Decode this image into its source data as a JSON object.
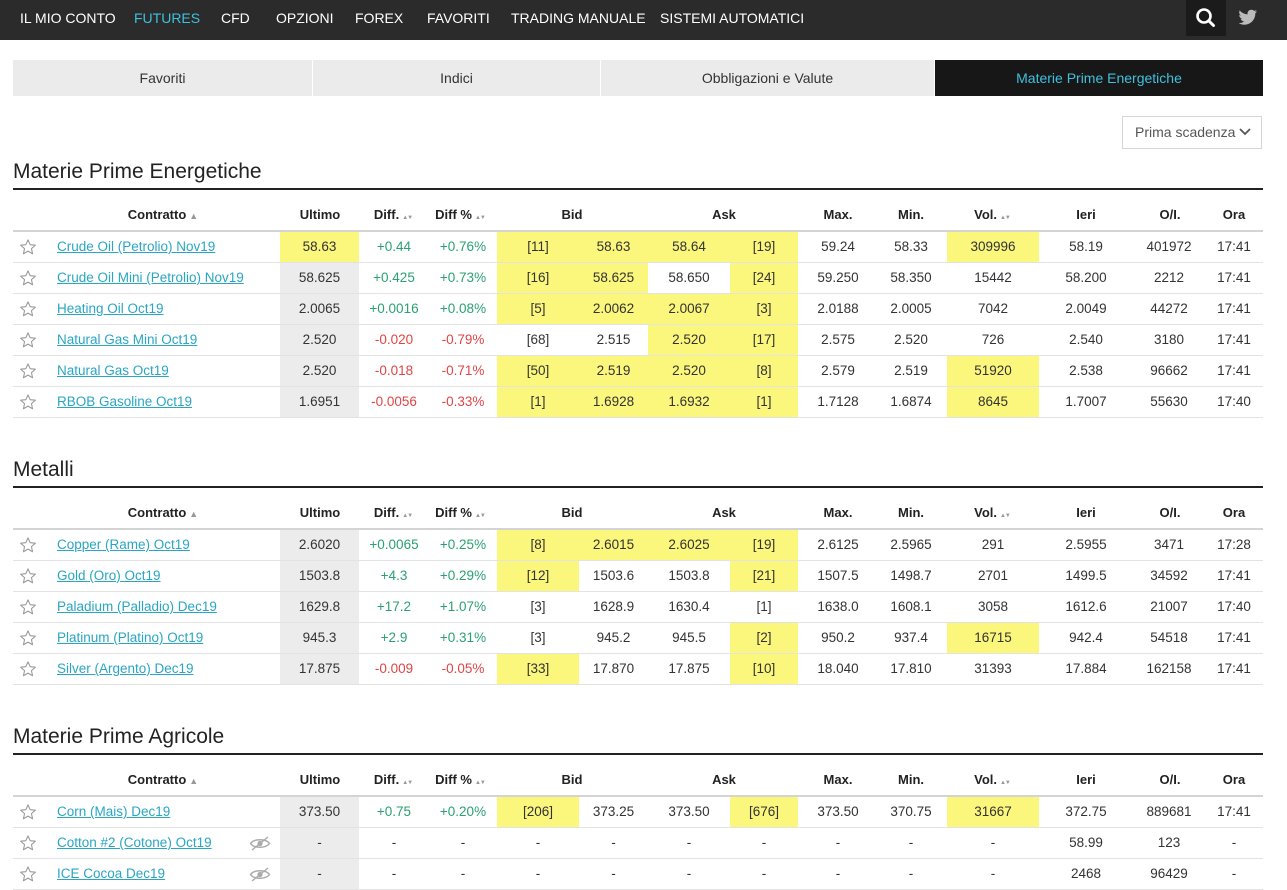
{
  "nav": {
    "items": [
      {
        "label": "IL MIO CONTO",
        "active": false
      },
      {
        "label": "FUTURES",
        "active": true
      },
      {
        "label": "CFD",
        "active": false
      },
      {
        "label": "OPZIONI",
        "active": false
      },
      {
        "label": "FOREX",
        "active": false
      },
      {
        "label": "FAVORITI",
        "active": false
      },
      {
        "label": "TRADING MANUALE",
        "active": false
      },
      {
        "label": "SISTEMI AUTOMATICI",
        "active": false
      }
    ],
    "search_icon": "search-icon",
    "twitter_icon": "twitter-icon"
  },
  "tabs": [
    {
      "label": "Favoriti",
      "active": false
    },
    {
      "label": "Indici",
      "active": false
    },
    {
      "label": "Obbligazioni e Valute",
      "active": false
    },
    {
      "label": "Materie Prime Energetiche",
      "active": true
    }
  ],
  "dropdown": {
    "selected": "Prima scadenza"
  },
  "columns": {
    "contratto": "Contratto",
    "ultimo": "Ultimo",
    "diff": "Diff.",
    "diffpct": "Diff %",
    "bid": "Bid",
    "ask": "Ask",
    "max": "Max.",
    "min": "Min.",
    "vol": "Vol.",
    "ieri": "Ieri",
    "oi": "O/I.",
    "ora": "Ora"
  },
  "colors": {
    "accent": "#3fc0dd",
    "positive": "#2aa171",
    "negative": "#e04545",
    "highlight": "#fbf67c",
    "nav_bg": "#2b2b2b"
  },
  "sections": [
    {
      "title": "Materie Prime Energetiche",
      "rows": [
        {
          "name": "Crude Oil (Petrolio) Nov19",
          "ultimo": "58.63",
          "diff": "+0.44",
          "diffpct": "+0.76%",
          "bidsize": "[11]",
          "bid": "58.63",
          "ask": "58.64",
          "asksize": "[19]",
          "max": "59.24",
          "min": "58.33",
          "vol": "309996",
          "ieri": "58.19",
          "oi": "401972",
          "ora": "17:41",
          "dir": "pos",
          "hl": [
            "ultimo",
            "bidsize",
            "bid",
            "ask",
            "asksize",
            "vol"
          ],
          "hidden": false
        },
        {
          "name": "Crude Oil Mini (Petrolio) Nov19",
          "ultimo": "58.625",
          "diff": "+0.425",
          "diffpct": "+0.73%",
          "bidsize": "[16]",
          "bid": "58.625",
          "ask": "58.650",
          "asksize": "[24]",
          "max": "59.250",
          "min": "58.350",
          "vol": "15442",
          "ieri": "58.200",
          "oi": "2212",
          "ora": "17:41",
          "dir": "pos",
          "hl": [
            "bidsize",
            "bid",
            "asksize"
          ],
          "hidden": false
        },
        {
          "name": "Heating Oil Oct19",
          "ultimo": "2.0065",
          "diff": "+0.0016",
          "diffpct": "+0.08%",
          "bidsize": "[5]",
          "bid": "2.0062",
          "ask": "2.0067",
          "asksize": "[3]",
          "max": "2.0188",
          "min": "2.0005",
          "vol": "7042",
          "ieri": "2.0049",
          "oi": "44272",
          "ora": "17:41",
          "dir": "pos",
          "hl": [
            "bidsize",
            "bid",
            "ask",
            "asksize"
          ],
          "hidden": false
        },
        {
          "name": "Natural Gas Mini Oct19",
          "ultimo": "2.520",
          "diff": "-0.020",
          "diffpct": "-0.79%",
          "bidsize": "[68]",
          "bid": "2.515",
          "ask": "2.520",
          "asksize": "[17]",
          "max": "2.575",
          "min": "2.520",
          "vol": "726",
          "ieri": "2.540",
          "oi": "3180",
          "ora": "17:41",
          "dir": "neg",
          "hl": [
            "ask",
            "asksize"
          ],
          "hidden": false
        },
        {
          "name": "Natural Gas Oct19",
          "ultimo": "2.520",
          "diff": "-0.018",
          "diffpct": "-0.71%",
          "bidsize": "[50]",
          "bid": "2.519",
          "ask": "2.520",
          "asksize": "[8]",
          "max": "2.579",
          "min": "2.519",
          "vol": "51920",
          "ieri": "2.538",
          "oi": "96662",
          "ora": "17:41",
          "dir": "neg",
          "hl": [
            "bidsize",
            "bid",
            "ask",
            "asksize",
            "vol"
          ],
          "hidden": false
        },
        {
          "name": "RBOB Gasoline Oct19",
          "ultimo": "1.6951",
          "diff": "-0.0056",
          "diffpct": "-0.33%",
          "bidsize": "[1]",
          "bid": "1.6928",
          "ask": "1.6932",
          "asksize": "[1]",
          "max": "1.7128",
          "min": "1.6874",
          "vol": "8645",
          "ieri": "1.7007",
          "oi": "55630",
          "ora": "17:40",
          "dir": "neg",
          "hl": [
            "bidsize",
            "bid",
            "ask",
            "asksize",
            "vol"
          ],
          "hidden": false
        }
      ]
    },
    {
      "title": "Metalli",
      "rows": [
        {
          "name": "Copper (Rame) Oct19",
          "ultimo": "2.6020",
          "diff": "+0.0065",
          "diffpct": "+0.25%",
          "bidsize": "[8]",
          "bid": "2.6015",
          "ask": "2.6025",
          "asksize": "[19]",
          "max": "2.6125",
          "min": "2.5965",
          "vol": "291",
          "ieri": "2.5955",
          "oi": "3471",
          "ora": "17:28",
          "dir": "pos",
          "hl": [
            "bidsize",
            "bid",
            "ask",
            "asksize"
          ],
          "hidden": false
        },
        {
          "name": "Gold (Oro) Oct19",
          "ultimo": "1503.8",
          "diff": "+4.3",
          "diffpct": "+0.29%",
          "bidsize": "[12]",
          "bid": "1503.6",
          "ask": "1503.8",
          "asksize": "[21]",
          "max": "1507.5",
          "min": "1498.7",
          "vol": "2701",
          "ieri": "1499.5",
          "oi": "34592",
          "ora": "17:41",
          "dir": "pos",
          "hl": [
            "bidsize",
            "asksize"
          ],
          "hidden": false
        },
        {
          "name": "Paladium (Palladio) Dec19",
          "ultimo": "1629.8",
          "diff": "+17.2",
          "diffpct": "+1.07%",
          "bidsize": "[3]",
          "bid": "1628.9",
          "ask": "1630.4",
          "asksize": "[1]",
          "max": "1638.0",
          "min": "1608.1",
          "vol": "3058",
          "ieri": "1612.6",
          "oi": "21007",
          "ora": "17:40",
          "dir": "pos",
          "hl": [],
          "hidden": false
        },
        {
          "name": "Platinum (Platino) Oct19",
          "ultimo": "945.3",
          "diff": "+2.9",
          "diffpct": "+0.31%",
          "bidsize": "[3]",
          "bid": "945.2",
          "ask": "945.5",
          "asksize": "[2]",
          "max": "950.2",
          "min": "937.4",
          "vol": "16715",
          "ieri": "942.4",
          "oi": "54518",
          "ora": "17:41",
          "dir": "pos",
          "hl": [
            "asksize",
            "vol"
          ],
          "hidden": false
        },
        {
          "name": "Silver (Argento) Dec19",
          "ultimo": "17.875",
          "diff": "-0.009",
          "diffpct": "-0.05%",
          "bidsize": "[33]",
          "bid": "17.870",
          "ask": "17.875",
          "asksize": "[10]",
          "max": "18.040",
          "min": "17.810",
          "vol": "31393",
          "ieri": "17.884",
          "oi": "162158",
          "ora": "17:41",
          "dir": "neg",
          "hl": [
            "bidsize",
            "asksize"
          ],
          "hidden": false
        }
      ]
    },
    {
      "title": "Materie Prime Agricole",
      "rows": [
        {
          "name": "Corn (Mais) Dec19",
          "ultimo": "373.50",
          "diff": "+0.75",
          "diffpct": "+0.20%",
          "bidsize": "[206]",
          "bid": "373.25",
          "ask": "373.50",
          "asksize": "[676]",
          "max": "373.50",
          "min": "370.75",
          "vol": "31667",
          "ieri": "372.75",
          "oi": "889681",
          "ora": "17:41",
          "dir": "pos",
          "hl": [
            "bidsize",
            "asksize",
            "vol"
          ],
          "hidden": false
        },
        {
          "name": "Cotton #2 (Cotone) Oct19",
          "ultimo": "-",
          "diff": "-",
          "diffpct": "-",
          "bidsize": "-",
          "bid": "-",
          "ask": "-",
          "asksize": "-",
          "max": "-",
          "min": "-",
          "vol": "-",
          "ieri": "58.99",
          "oi": "123",
          "ora": "-",
          "dir": "none",
          "hl": [],
          "hidden": true
        },
        {
          "name": "ICE Cocoa Dec19",
          "ultimo": "-",
          "diff": "-",
          "diffpct": "-",
          "bidsize": "-",
          "bid": "-",
          "ask": "-",
          "asksize": "-",
          "max": "-",
          "min": "-",
          "vol": "-",
          "ieri": "2468",
          "oi": "96429",
          "ora": "-",
          "dir": "none",
          "hl": [],
          "hidden": true
        }
      ]
    }
  ]
}
